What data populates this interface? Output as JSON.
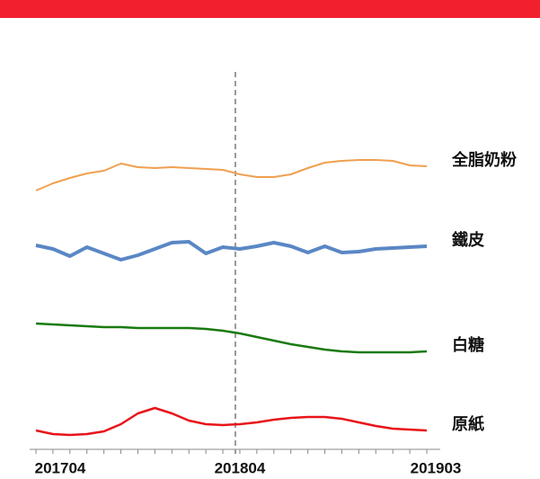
{
  "chart_data": {
    "type": "line",
    "categories": [
      "201704",
      null,
      null,
      null,
      null,
      null,
      null,
      null,
      null,
      null,
      null,
      null,
      "201804",
      null,
      null,
      null,
      null,
      null,
      null,
      null,
      null,
      null,
      null,
      "201903"
    ],
    "ylim": [
      0,
      400
    ],
    "reference_line": {
      "x": "201804",
      "color": "#999999",
      "dashed": true
    },
    "series": [
      {
        "name": "全脂奶粉",
        "color": "#f0a050",
        "width": 2,
        "values": [
          288,
          296,
          302,
          307,
          310,
          318,
          314,
          313,
          314,
          313,
          312,
          311,
          306,
          303,
          303,
          306,
          313,
          319,
          321,
          322,
          322,
          321,
          316,
          315
        ]
      },
      {
        "name": "鐵皮",
        "color": "#5a87c5",
        "width": 4,
        "values": [
          227,
          223,
          215,
          225,
          218,
          211,
          216,
          223,
          230,
          231,
          218,
          225,
          223,
          226,
          230,
          226,
          219,
          226,
          219,
          220,
          223,
          224,
          225,
          226
        ]
      },
      {
        "name": "白糖",
        "color": "#1a7a10",
        "width": 2.5,
        "values": [
          140,
          139,
          138,
          137,
          136,
          136,
          135,
          135,
          135,
          135,
          134,
          132,
          129,
          125,
          121,
          117,
          114,
          111,
          109,
          108,
          108,
          108,
          108,
          109
        ]
      },
      {
        "name": "原紙",
        "color": "#e8141a",
        "width": 2.5,
        "values": [
          21,
          17,
          16,
          17,
          20,
          28,
          40,
          46,
          40,
          32,
          28,
          27,
          28,
          30,
          33,
          35,
          36,
          36,
          34,
          30,
          26,
          23,
          22,
          21
        ]
      }
    ]
  }
}
